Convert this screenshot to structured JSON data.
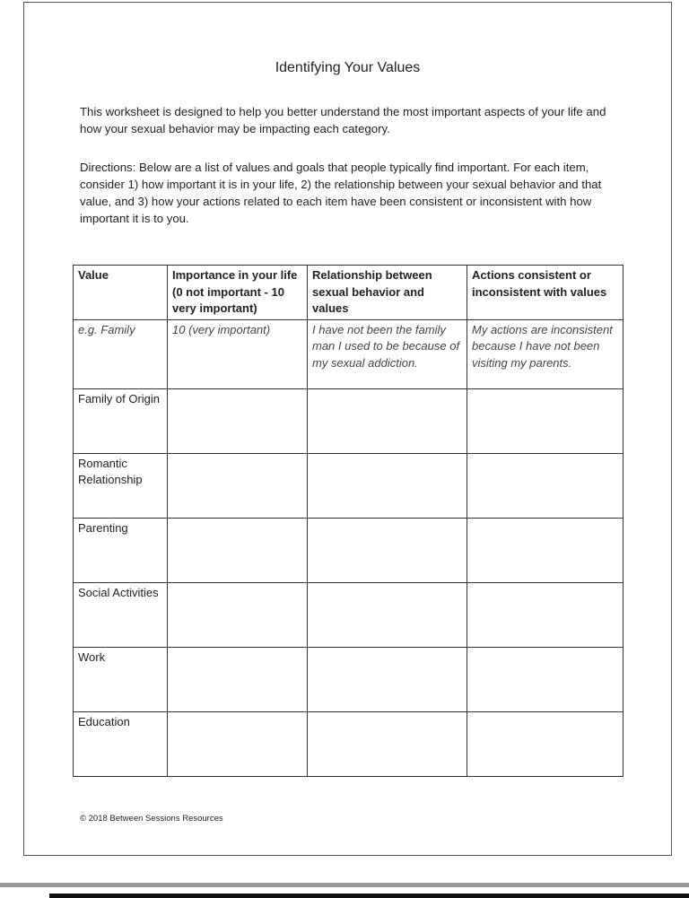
{
  "title": "Identifying Your Values",
  "intro": "This worksheet is designed to help you better understand the most important aspects of your life and how your sexual behavior may be impacting each category.",
  "directions": "Directions: Below are a list of values and goals that people typically find important. For each item, consider 1) how important it is in your life, 2) the relationship between your sexual behavior and that value, and 3) how your actions related to each item have been consistent or inconsistent with how important it is to you.",
  "table": {
    "headers": [
      "Value",
      "Importance in your life (0 not important - 10 very important)",
      "Relationship between sexual behavior and values",
      "Actions consistent or inconsistent with values"
    ],
    "example": [
      "e.g. Family",
      "10 (very important)",
      "I have not been the family man I used to be because of my sexual addiction.",
      "My actions are inconsistent because I have not been visiting my parents."
    ],
    "rows": [
      "Family of Origin",
      "Romantic Relationship",
      "Parenting",
      "Social Activities",
      "Work",
      "Education"
    ]
  },
  "footer": "© 2018 Between Sessions Resources"
}
